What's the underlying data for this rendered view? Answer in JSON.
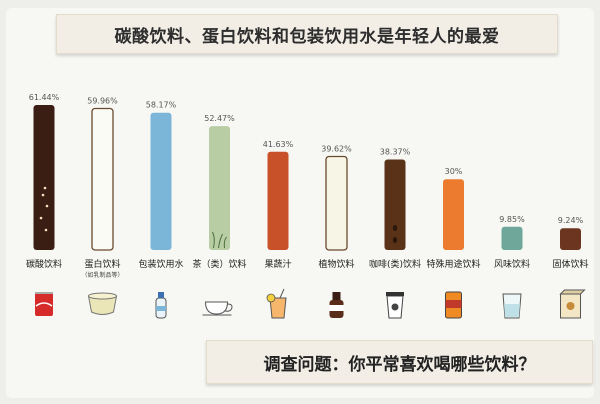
{
  "title": "碳酸饮料、蛋白饮料和包装饮用水是年轻人的最爱",
  "question": "调查问题：你平常喜欢喝哪些饮料？",
  "chart_data": {
    "type": "bar",
    "categories": [
      "碳酸饮料",
      "蛋白饮料",
      "包装饮用水",
      "茶（类）饮料",
      "果蔬汁",
      "植物饮料",
      "咖啡(类)饮料",
      "特殊用途饮料",
      "风味饮料",
      "固体饮料"
    ],
    "category_notes": [
      "",
      "（如乳制品等）",
      "",
      "",
      "",
      "",
      "",
      "",
      "",
      ""
    ],
    "values": [
      61.44,
      59.96,
      58.17,
      52.47,
      41.63,
      39.62,
      38.37,
      30,
      9.85,
      9.24
    ],
    "value_labels": [
      "61.44%",
      "59.96%",
      "58.17%",
      "52.47%",
      "41.63%",
      "39.62%",
      "38.37%",
      "30%",
      "9.85%",
      "9.24%"
    ],
    "colors": [
      "#3a1e14",
      "#fbfbf5",
      "#7bb6d8",
      "#b9cda5",
      "#c9512a",
      "#f7f5e6",
      "#5a3218",
      "#ec7b2f",
      "#6fa89a",
      "#6b3520"
    ],
    "icons": [
      "cola-can-icon",
      "bowl-icon",
      "water-bottle-icon",
      "tea-cup-icon",
      "juice-glass-icon",
      "plant-drink-bottle-icon",
      "coffee-cup-icon",
      "energy-drink-can-icon",
      "glass-icon",
      "powder-box-icon"
    ]
  }
}
